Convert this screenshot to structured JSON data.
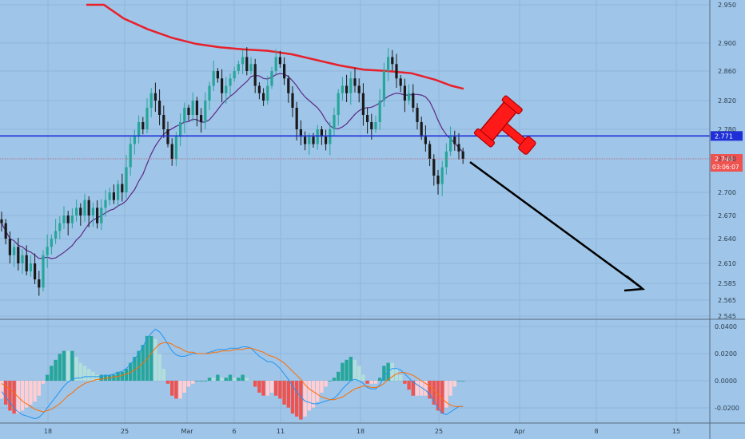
{
  "chart_data": [
    {
      "type": "candlestick",
      "title": "",
      "y_ticks": [
        "2.950",
        "2.900",
        "2.860",
        "2.820",
        "2.780",
        "2.740",
        "2.700",
        "2.670",
        "2.640",
        "2.610",
        "2.585",
        "2.565",
        "2.545"
      ],
      "ylim": [
        2.545,
        2.96
      ],
      "x_ticks": [
        "18",
        "25",
        "Mar",
        "6",
        "11",
        "18",
        "25",
        "Apr",
        "8",
        "15"
      ],
      "grid": true,
      "support_line": {
        "value": 2.771,
        "label": "2.771",
        "color": "#1e2fd8"
      },
      "last_price": {
        "value": 2.74,
        "label": "2.740",
        "countdown": "03:06:07",
        "color": "#ef5350"
      },
      "ma_slow_color": "#e8202a",
      "ma_fast_color": "#5b2a86",
      "up_color": "#26a69a",
      "down_color": "#1a1a1a",
      "annotations": [
        "gavel-icon",
        "down-arrow"
      ],
      "closes": [
        2.66,
        2.64,
        2.62,
        2.63,
        2.61,
        2.62,
        2.6,
        2.61,
        2.59,
        2.58,
        2.62,
        2.63,
        2.64,
        2.65,
        2.66,
        2.67,
        2.66,
        2.67,
        2.68,
        2.67,
        2.69,
        2.67,
        2.68,
        2.66,
        2.68,
        2.69,
        2.7,
        2.69,
        2.71,
        2.7,
        2.73,
        2.76,
        2.77,
        2.79,
        2.78,
        2.81,
        2.83,
        2.82,
        2.8,
        2.78,
        2.76,
        2.74,
        2.77,
        2.79,
        2.81,
        2.8,
        2.82,
        2.8,
        2.79,
        2.82,
        2.84,
        2.86,
        2.85,
        2.83,
        2.84,
        2.85,
        2.86,
        2.87,
        2.88,
        2.86,
        2.87,
        2.84,
        2.83,
        2.82,
        2.84,
        2.86,
        2.88,
        2.87,
        2.85,
        2.83,
        2.81,
        2.78,
        2.77,
        2.76,
        2.77,
        2.76,
        2.78,
        2.77,
        2.76,
        2.78,
        2.8,
        2.83,
        2.84,
        2.83,
        2.85,
        2.84,
        2.83,
        2.8,
        2.79,
        2.78,
        2.79,
        2.82,
        2.86,
        2.88,
        2.87,
        2.85,
        2.84,
        2.82,
        2.83,
        2.81,
        2.79,
        2.77,
        2.76,
        2.74,
        2.72,
        2.71,
        2.73,
        2.75,
        2.77,
        2.76,
        2.75,
        2.74
      ]
    },
    {
      "type": "macd",
      "y_ticks": [
        "0.0400",
        "0.0200",
        "0.0000",
        "-0.0200"
      ],
      "ylim": [
        -0.03,
        0.041
      ],
      "macd_color": "#2196f3",
      "signal_color": "#ff6d00",
      "hist_pos_color": "#26a69a",
      "hist_pos_light": "#b2dfdb",
      "hist_neg_color": "#ef5350",
      "hist_neg_light": "#ffcdd2",
      "macd": [
        -0.008,
        -0.012,
        -0.016,
        -0.02,
        -0.023,
        -0.025,
        -0.026,
        -0.027,
        -0.028,
        -0.027,
        -0.024,
        -0.02,
        -0.016,
        -0.012,
        -0.008,
        -0.004,
        -0.001,
        0.001,
        0.002,
        0.002,
        0.003,
        0.003,
        0.003,
        0.003,
        0.003,
        0.004,
        0.004,
        0.005,
        0.006,
        0.007,
        0.009,
        0.012,
        0.016,
        0.02,
        0.025,
        0.031,
        0.035,
        0.038,
        0.036,
        0.032,
        0.027,
        0.022,
        0.019,
        0.018,
        0.018,
        0.019,
        0.02,
        0.02,
        0.02,
        0.02,
        0.021,
        0.022,
        0.023,
        0.023,
        0.023,
        0.024,
        0.024,
        0.024,
        0.025,
        0.025,
        0.024,
        0.021,
        0.018,
        0.016,
        0.014,
        0.014,
        0.012,
        0.009,
        0.005,
        0.001,
        -0.004,
        -0.008,
        -0.012,
        -0.015,
        -0.016,
        -0.017,
        -0.017,
        -0.016,
        -0.015,
        -0.014,
        -0.013,
        -0.01,
        -0.006,
        -0.003,
        0.0,
        0.001,
        0.0,
        -0.002,
        -0.005,
        -0.006,
        -0.006,
        -0.003,
        0.003,
        0.007,
        0.009,
        0.009,
        0.008,
        0.005,
        0.002,
        -0.001,
        -0.003,
        -0.005,
        -0.007,
        -0.01,
        -0.015,
        -0.02,
        -0.024,
        -0.025,
        -0.023,
        -0.021,
        -0.019,
        -0.019
      ],
      "signal": [
        -0.002,
        -0.004,
        -0.006,
        -0.009,
        -0.012,
        -0.015,
        -0.017,
        -0.019,
        -0.021,
        -0.022,
        -0.023,
        -0.022,
        -0.021,
        -0.019,
        -0.017,
        -0.014,
        -0.011,
        -0.009,
        -0.006,
        -0.004,
        -0.002,
        -0.001,
        0.0,
        0.001,
        0.001,
        0.002,
        0.002,
        0.003,
        0.003,
        0.004,
        0.005,
        0.006,
        0.008,
        0.01,
        0.013,
        0.016,
        0.02,
        0.024,
        0.027,
        0.028,
        0.028,
        0.027,
        0.025,
        0.024,
        0.022,
        0.021,
        0.021,
        0.02,
        0.02,
        0.02,
        0.02,
        0.021,
        0.021,
        0.022,
        0.022,
        0.022,
        0.023,
        0.023,
        0.023,
        0.024,
        0.024,
        0.023,
        0.022,
        0.021,
        0.019,
        0.018,
        0.017,
        0.015,
        0.013,
        0.01,
        0.007,
        0.004,
        0.001,
        -0.003,
        -0.006,
        -0.008,
        -0.01,
        -0.012,
        -0.013,
        -0.014,
        -0.014,
        -0.013,
        -0.012,
        -0.01,
        -0.008,
        -0.006,
        -0.005,
        -0.004,
        -0.004,
        -0.005,
        -0.005,
        -0.004,
        -0.002,
        0.001,
        0.003,
        0.005,
        0.006,
        0.006,
        0.005,
        0.004,
        0.002,
        0.0,
        -0.002,
        -0.004,
        -0.007,
        -0.01,
        -0.013,
        -0.016,
        -0.018,
        -0.019,
        -0.019,
        -0.019
      ]
    }
  ]
}
